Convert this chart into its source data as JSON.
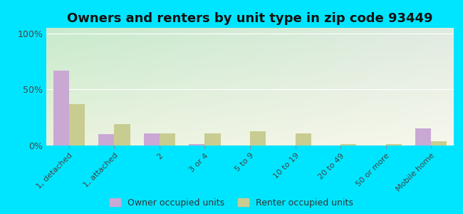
{
  "title": "Owners and renters by unit type in zip code 93449",
  "categories": [
    "1, detached",
    "1, attached",
    "2",
    "3 or 4",
    "5 to 9",
    "10 to 19",
    "20 to 49",
    "50 or more",
    "Mobile home"
  ],
  "owner_values": [
    67,
    10,
    11,
    1,
    0,
    0,
    0,
    0,
    15
  ],
  "renter_values": [
    37,
    19,
    11,
    11,
    13,
    11,
    1,
    1,
    4
  ],
  "owner_color": "#c9a8d4",
  "renter_color": "#c8cc90",
  "outer_bg": "#00e5ff",
  "yticks": [
    0,
    50,
    100
  ],
  "ylim": [
    0,
    105
  ],
  "title_fontsize": 13,
  "legend_owner": "Owner occupied units",
  "legend_renter": "Renter occupied units",
  "bar_width": 0.35
}
